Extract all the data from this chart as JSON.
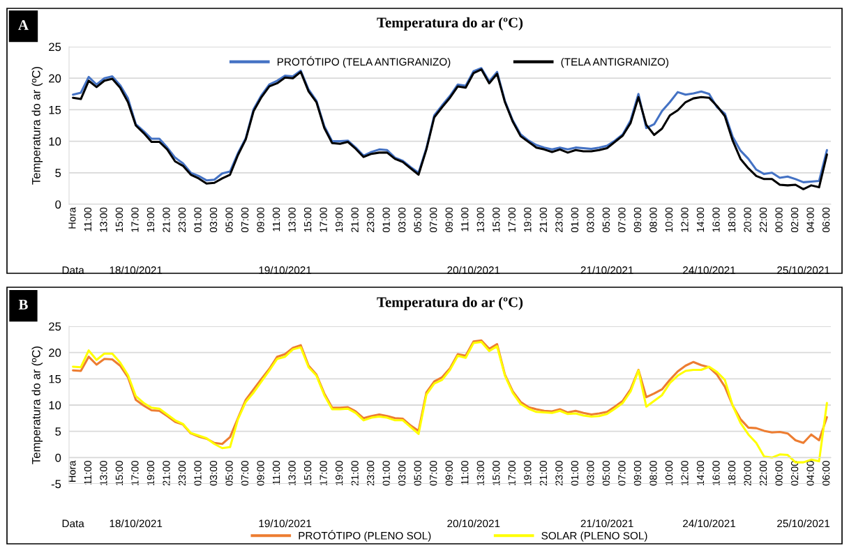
{
  "chart_data": [
    {
      "type": "line",
      "title": "Temperatura do ar (ºC)",
      "ylabel": "Temperatura do ar (ºC)",
      "categories": [
        "Hora",
        null,
        "11:00",
        null,
        "13:00",
        null,
        "15:00",
        null,
        "17:00",
        null,
        "19:00",
        null,
        "21:00",
        null,
        "23:00",
        null,
        "01:00",
        null,
        "03:00",
        null,
        "05:00",
        null,
        "07:00",
        null,
        "09:00",
        null,
        "11:00",
        null,
        "13:00",
        null,
        "15:00",
        null,
        "17:00",
        null,
        "19:00",
        null,
        "21:00",
        null,
        "23:00",
        null,
        "01:00",
        null,
        "03:00",
        null,
        "05:00",
        null,
        "07:00",
        null,
        "09:00",
        null,
        "11:00",
        null,
        "13:00",
        null,
        "15:00",
        null,
        "17:00",
        null,
        "19:00",
        null,
        "21:00",
        null,
        "23:00",
        null,
        "01:00",
        null,
        "03:00",
        null,
        "05:00",
        null,
        "07:00",
        null,
        "09:00",
        null,
        "08:00",
        null,
        "10:00",
        null,
        "12:00",
        null,
        "14:00",
        null,
        "16:00",
        null,
        "18:00",
        null,
        "20:00",
        null,
        "22:00",
        null,
        "00:00",
        null,
        "02:00",
        null,
        "04:00",
        null,
        "06:00"
      ],
      "series": [
        {
          "name": "PROTÓTIPO (TELA ANTIGRANIZO)",
          "color": "#4472c4",
          "values": [
            17.4,
            17.7,
            20.2,
            19.0,
            20.0,
            20.3,
            18.9,
            16.8,
            12.7,
            11.6,
            10.4,
            10.4,
            9.0,
            7.4,
            6.5,
            5.0,
            4.5,
            3.8,
            3.9,
            4.9,
            5.2,
            8.1,
            10.5,
            15.1,
            17.3,
            19.0,
            19.6,
            20.4,
            20.3,
            21.2,
            18.2,
            16.4,
            12.4,
            10.0,
            10.0,
            10.1,
            9.0,
            7.7,
            8.3,
            8.7,
            8.6,
            7.4,
            6.9,
            5.9,
            5.0,
            8.9,
            14.1,
            15.7,
            17.2,
            19.0,
            18.8,
            21.1,
            21.6,
            19.5,
            21.0,
            16.4,
            13.3,
            11.1,
            10.1,
            9.4,
            9.0,
            8.7,
            9.0,
            8.7,
            9.0,
            8.9,
            8.8,
            9.0,
            9.3,
            10.1,
            11.1,
            13.3,
            17.5,
            12.1,
            12.7,
            14.8,
            16.2,
            17.8,
            17.4,
            17.6,
            17.9,
            17.5,
            15.4,
            14.4,
            10.7,
            8.5,
            7.2,
            5.5,
            4.8,
            5.0,
            4.2,
            4.4,
            4.0,
            3.5,
            3.6,
            3.7,
            8.6
          ]
        },
        {
          "name": "(TELA ANTIGRANIZO)",
          "color": "#000000",
          "values": [
            16.9,
            16.7,
            19.6,
            18.6,
            19.6,
            19.9,
            18.5,
            16.2,
            12.5,
            11.3,
            9.9,
            9.9,
            8.7,
            6.8,
            6.1,
            4.7,
            4.1,
            3.3,
            3.4,
            4.1,
            4.7,
            7.8,
            10.3,
            14.8,
            17.0,
            18.7,
            19.2,
            20.1,
            20.0,
            21.0,
            17.9,
            16.2,
            12.1,
            9.7,
            9.6,
            9.9,
            8.8,
            7.5,
            8.0,
            8.2,
            8.2,
            7.2,
            6.7,
            5.7,
            4.7,
            8.7,
            13.8,
            15.4,
            16.9,
            18.7,
            18.5,
            20.8,
            21.4,
            19.2,
            20.7,
            16.2,
            13.1,
            10.8,
            9.9,
            9.0,
            8.7,
            8.3,
            8.7,
            8.2,
            8.6,
            8.4,
            8.4,
            8.6,
            8.9,
            9.9,
            10.9,
            12.9,
            17.0,
            12.6,
            11.0,
            12.0,
            14.1,
            14.9,
            16.2,
            16.8,
            17.0,
            16.9,
            15.6,
            14.0,
            10.1,
            7.2,
            5.7,
            4.5,
            4.0,
            4.0,
            3.1,
            3.0,
            3.1,
            2.4,
            3.0,
            2.7,
            7.9
          ]
        }
      ],
      "ylim": [
        0,
        25
      ],
      "yticks": [
        0,
        5,
        10,
        15,
        20,
        25
      ],
      "grid": "y",
      "legend": "top",
      "annotations": [
        "A",
        "Data",
        "18/10/2021",
        "19/10/2021",
        "20/10/2021",
        "21/10/2021",
        "24/10/2021",
        "25/10/2021"
      ]
    },
    {
      "type": "line",
      "title": "Temperatura do ar (ºC)",
      "ylabel": "Temperatura do ar (ºC)",
      "categories": [
        "Hora",
        null,
        "11:00",
        null,
        "13:00",
        null,
        "15:00",
        null,
        "17:00",
        null,
        "19:00",
        null,
        "21:00",
        null,
        "23:00",
        null,
        "01:00",
        null,
        "03:00",
        null,
        "05:00",
        null,
        "07:00",
        null,
        "09:00",
        null,
        "11:00",
        null,
        "13:00",
        null,
        "15:00",
        null,
        "17:00",
        null,
        "19:00",
        null,
        "21:00",
        null,
        "23:00",
        null,
        "01:00",
        null,
        "03:00",
        null,
        "05:00",
        null,
        "07:00",
        null,
        "09:00",
        null,
        "11:00",
        null,
        "13:00",
        null,
        "15:00",
        null,
        "17:00",
        null,
        "19:00",
        null,
        "21:00",
        null,
        "23:00",
        null,
        "01:00",
        null,
        "03:00",
        null,
        "05:00",
        null,
        "07:00",
        null,
        "09:00",
        null,
        "08:00",
        null,
        "10:00",
        null,
        "12:00",
        null,
        "14:00",
        null,
        "16:00",
        null,
        "18:00",
        null,
        "20:00",
        null,
        "22:00",
        null,
        "00:00",
        null,
        "02:00",
        null,
        "04:00",
        null,
        "06:00"
      ],
      "series": [
        {
          "name": "PROTÓTIPO (PLENO SOL)",
          "color": "#ed7d31",
          "values": [
            16.6,
            16.5,
            19.2,
            17.7,
            18.8,
            18.7,
            17.5,
            15.3,
            11.0,
            9.9,
            9.0,
            8.9,
            7.9,
            6.8,
            6.3,
            4.6,
            4.0,
            3.6,
            2.8,
            2.6,
            3.9,
            7.5,
            11.0,
            13.0,
            15.0,
            16.9,
            19.2,
            19.7,
            20.9,
            21.4,
            17.5,
            15.8,
            12.2,
            9.5,
            9.5,
            9.6,
            8.8,
            7.5,
            7.9,
            8.2,
            7.9,
            7.5,
            7.4,
            6.1,
            5.1,
            12.4,
            14.5,
            15.3,
            17.0,
            19.7,
            19.4,
            22.1,
            22.3,
            20.7,
            21.6,
            15.8,
            12.6,
            10.6,
            9.6,
            9.2,
            8.9,
            8.8,
            9.2,
            8.6,
            8.9,
            8.5,
            8.2,
            8.4,
            8.7,
            9.7,
            10.8,
            13.0,
            16.7,
            11.5,
            12.2,
            13.0,
            14.8,
            16.4,
            17.5,
            18.2,
            17.6,
            17.2,
            15.8,
            13.5,
            9.9,
            7.3,
            5.7,
            5.6,
            5.1,
            4.8,
            4.9,
            4.6,
            3.3,
            2.8,
            4.4,
            3.3,
            7.7
          ]
        },
        {
          "name": "SOLAR (PLENO SOL)",
          "color": "#ffff00",
          "values": [
            17.3,
            17.2,
            20.4,
            18.6,
            19.8,
            19.8,
            18.1,
            15.7,
            11.7,
            10.4,
            9.5,
            9.3,
            8.2,
            7.1,
            6.4,
            4.7,
            4.2,
            3.7,
            2.6,
            1.8,
            2.0,
            7.3,
            10.6,
            12.4,
            14.5,
            16.6,
            18.8,
            19.2,
            20.6,
            21.0,
            17.2,
            15.6,
            11.9,
            9.2,
            9.2,
            9.3,
            8.5,
            7.1,
            7.6,
            7.8,
            7.6,
            7.1,
            7.1,
            5.8,
            4.5,
            12.0,
            14.1,
            14.8,
            16.7,
            19.4,
            19.0,
            21.8,
            22.0,
            20.3,
            21.2,
            15.6,
            12.3,
            10.2,
            9.3,
            8.7,
            8.6,
            8.5,
            8.9,
            8.3,
            8.4,
            8.0,
            7.8,
            7.9,
            8.3,
            9.3,
            10.4,
            12.6,
            16.6,
            9.7,
            10.8,
            11.9,
            14.2,
            15.6,
            16.5,
            16.7,
            16.7,
            17.3,
            16.3,
            14.8,
            9.9,
            6.6,
            4.4,
            2.8,
            0.2,
            0.0,
            0.6,
            0.5,
            -0.9,
            -0.9,
            -0.4,
            -0.7,
            10.4
          ]
        }
      ],
      "ylim": [
        -5,
        25
      ],
      "yticks": [
        -5,
        0,
        5,
        10,
        15,
        20,
        25
      ],
      "grid": "y",
      "legend": "bottom",
      "annotations": [
        "B",
        "Data",
        "18/10/2021",
        "19/10/2021",
        "20/10/2021",
        "21/10/2021",
        "24/10/2021",
        "25/10/2021"
      ]
    }
  ]
}
